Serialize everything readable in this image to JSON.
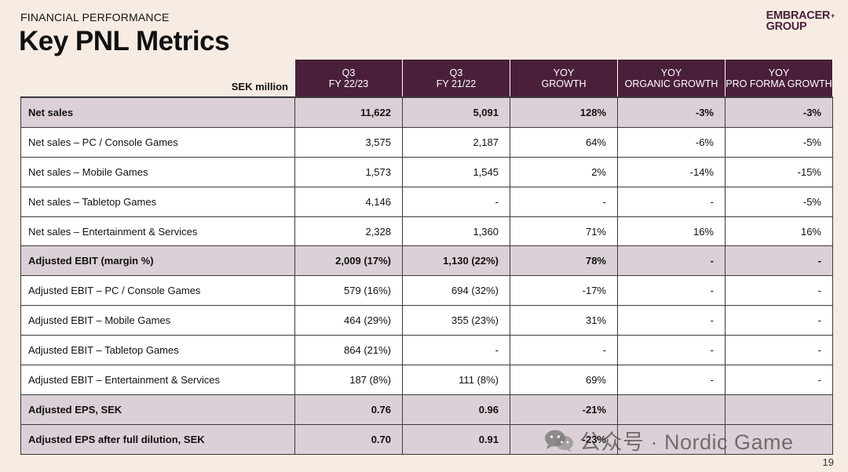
{
  "header": {
    "eyebrow": "FINANCIAL PERFORMANCE",
    "title": "Key PNL Metrics",
    "logo_line1": "EMBRACER",
    "logo_line2": "GROUP",
    "logo_mark": "+"
  },
  "table": {
    "corner_label": "SEK million",
    "columns": [
      {
        "line1": "Q3",
        "line2": "FY 22/23"
      },
      {
        "line1": "Q3",
        "line2": "FY 21/22"
      },
      {
        "line1": "YOY",
        "line2": "GROWTH"
      },
      {
        "line1": "YOY",
        "line2": "ORGANIC GROWTH"
      },
      {
        "line1": "YOY",
        "line2": "PRO FORMA GROWTH"
      }
    ],
    "rows": [
      {
        "label": "Net sales",
        "values": [
          "11,622",
          "5,091",
          "128%",
          "-3%",
          "-3%"
        ]
      },
      {
        "label": "Net sales – PC / Console Games",
        "values": [
          "3,575",
          "2,187",
          "64%",
          "-6%",
          "-5%"
        ]
      },
      {
        "label": "Net sales – Mobile Games",
        "values": [
          "1,573",
          "1,545",
          "2%",
          "-14%",
          "-15%"
        ]
      },
      {
        "label": "Net sales – Tabletop Games",
        "values": [
          "4,146",
          "-",
          "-",
          "-",
          "-5%"
        ]
      },
      {
        "label": "Net sales – Entertainment & Services",
        "values": [
          "2,328",
          "1,360",
          "71%",
          "16%",
          "16%"
        ]
      },
      {
        "label": "Adjusted EBIT (margin %)",
        "values": [
          "2,009 (17%)",
          "1,130 (22%)",
          "78%",
          "-",
          "-"
        ]
      },
      {
        "label": "Adjusted EBIT – PC / Console Games",
        "values": [
          "579 (16%)",
          "694 (32%)",
          "-17%",
          "-",
          "-"
        ]
      },
      {
        "label": "Adjusted EBIT – Mobile Games",
        "values": [
          "464 (29%)",
          "355 (23%)",
          "31%",
          "-",
          "-"
        ]
      },
      {
        "label": "Adjusted EBIT – Tabletop Games",
        "values": [
          "864 (21%)",
          "-",
          "-",
          "-",
          "-"
        ]
      },
      {
        "label": "Adjusted EBIT – Entertainment & Services",
        "values": [
          "187 (8%)",
          "111 (8%)",
          "69%",
          "-",
          "-"
        ]
      },
      {
        "label": "Adjusted EPS, SEK",
        "values": [
          "0.76",
          "0.96",
          "-21%",
          "",
          ""
        ]
      },
      {
        "label": "Adjusted EPS after full dilution, SEK",
        "values": [
          "0.70",
          "0.91",
          "-23%",
          "",
          ""
        ]
      }
    ]
  },
  "watermark": "公众号 · Nordic Game",
  "page_number": "19",
  "colors": {
    "background": "#f7ece3",
    "header_fill": "#4a1f3a",
    "highlight_row": "#dcd0d8"
  }
}
